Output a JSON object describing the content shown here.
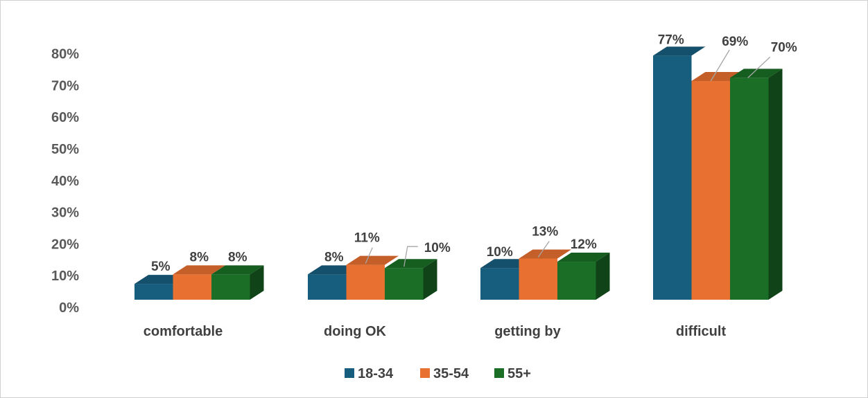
{
  "chart_data": {
    "type": "bar",
    "categories": [
      "comfortable",
      "doing OK",
      "getting by",
      "difficult"
    ],
    "series": [
      {
        "name": "18-34",
        "values": [
          5,
          8,
          10,
          77
        ],
        "labels": [
          "5%",
          "8%",
          "10%",
          "77%"
        ],
        "color": "#175D7E"
      },
      {
        "name": "35-54",
        "values": [
          8,
          11,
          13,
          69
        ],
        "labels": [
          "8%",
          "11%",
          "13%",
          "69%"
        ],
        "color": "#E87030"
      },
      {
        "name": "55+",
        "values": [
          8,
          10,
          12,
          70
        ],
        "labels": [
          "8%",
          "10%",
          "12%",
          "70%"
        ],
        "color": "#1A6E26"
      }
    ],
    "y_ticks": [
      "0%",
      "10%",
      "20%",
      "30%",
      "40%",
      "50%",
      "60%",
      "70%",
      "80%"
    ],
    "ylim": [
      0,
      80
    ],
    "three_d": true,
    "grid": false,
    "legend_position": "bottom",
    "title": "",
    "xlabel": "",
    "ylabel": ""
  }
}
